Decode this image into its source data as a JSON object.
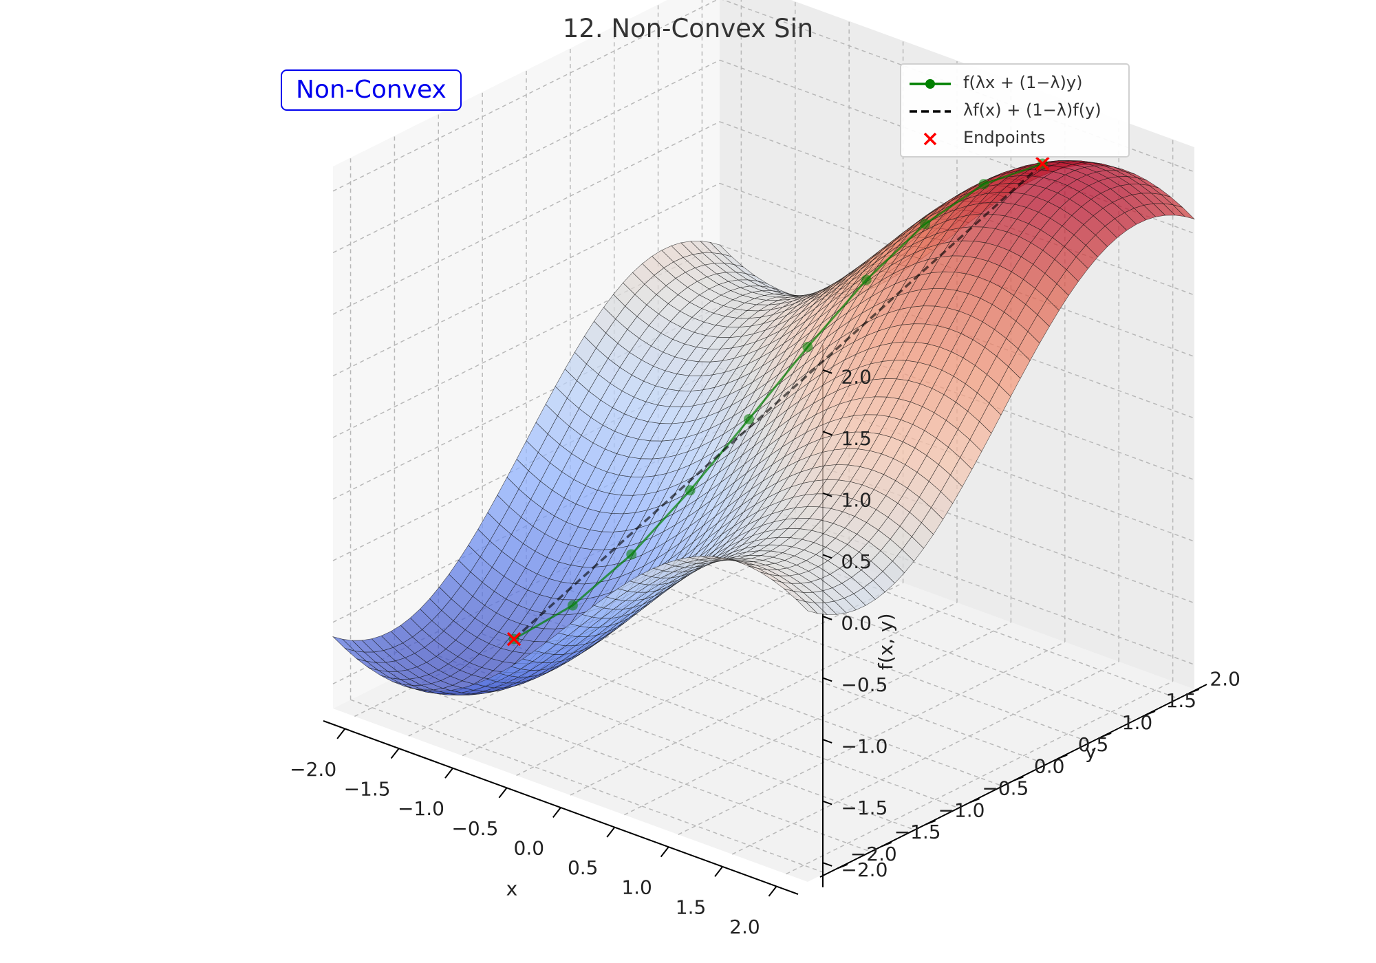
{
  "chart_data": {
    "type": "surface3d",
    "title": "12. Non-Convex Sin",
    "xlabel": "x",
    "ylabel": "y",
    "zlabel": "f(x, y)",
    "xlim": [
      -2.2,
      2.2
    ],
    "ylim": [
      -2.2,
      2.2
    ],
    "zlim": [
      -2.2,
      2.2
    ],
    "x_ticks": [
      "−2.0",
      "−1.5",
      "−1.0",
      "−0.5",
      "0.0",
      "0.5",
      "1.0",
      "1.5",
      "2.0"
    ],
    "y_ticks": [
      "−2.0",
      "−1.5",
      "−1.0",
      "−0.5",
      "0.0",
      "0.5",
      "1.0",
      "1.5",
      "2.0"
    ],
    "z_ticks": [
      "−2.0",
      "−1.5",
      "−1.0",
      "−0.5",
      "0.0",
      "0.5",
      "1.0",
      "1.5",
      "2.0"
    ],
    "surface": {
      "function": "sin(x) + sin(y)",
      "x_range": [
        -2.2,
        2.2
      ],
      "y_range": [
        -2.2,
        2.2
      ],
      "colormap": "coolwarm"
    },
    "annotation": "Non-Convex",
    "grid": true,
    "legend_position": "top-right",
    "series": [
      {
        "name": "f(λx + (1−λ)y)",
        "color": "#008000",
        "marker": "circle",
        "points": [
          {
            "x": -1.5,
            "y": -1.0,
            "z": -1.839
          },
          {
            "x": -1.2,
            "y": -0.7,
            "z": -1.576
          },
          {
            "x": -0.9,
            "y": -0.4,
            "z": -1.173
          },
          {
            "x": -0.6,
            "y": -0.1,
            "z": -0.664
          },
          {
            "x": -0.3,
            "y": 0.2,
            "z": -0.097
          },
          {
            "x": 0.0,
            "y": 0.5,
            "z": 0.479
          },
          {
            "x": 0.3,
            "y": 0.8,
            "z": 1.013
          },
          {
            "x": 0.6,
            "y": 1.1,
            "z": 1.456
          },
          {
            "x": 0.9,
            "y": 1.4,
            "z": 1.769
          },
          {
            "x": 1.2,
            "y": 1.7,
            "z": 1.924
          }
        ]
      },
      {
        "name": "λf(x) + (1−λ)f(y)",
        "color": "#000000",
        "style": "dashed",
        "points": [
          {
            "x": -1.5,
            "y": -1.0,
            "z": -1.839
          },
          {
            "x": 1.2,
            "y": 1.7,
            "z": 1.924
          }
        ]
      },
      {
        "name": "Endpoints",
        "color": "#ff0000",
        "marker": "x",
        "points": [
          {
            "x": -1.5,
            "y": -1.0,
            "z": -1.839
          },
          {
            "x": 1.2,
            "y": 1.7,
            "z": 1.924
          }
        ]
      }
    ]
  }
}
